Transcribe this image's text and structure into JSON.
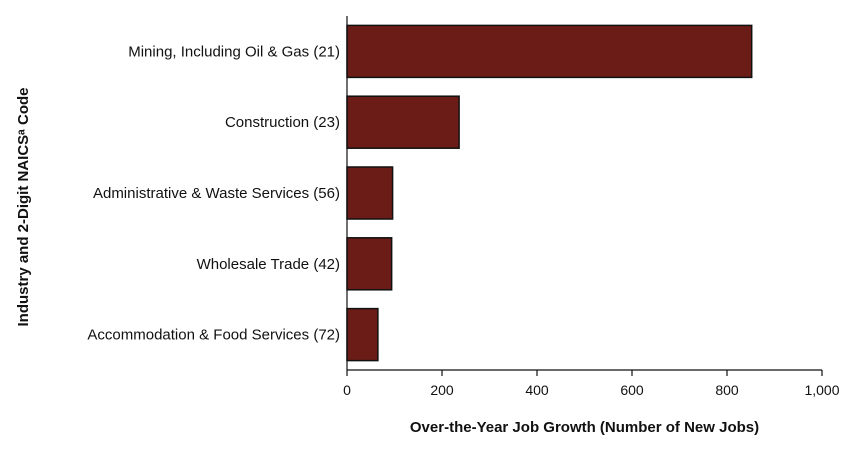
{
  "chart_data": {
    "type": "bar",
    "orientation": "horizontal",
    "title": "",
    "categories": [
      "Mining, Including Oil & Gas (21)",
      "Construction (23)",
      "Administrative & Waste Services (56)",
      "Wholesale Trade (42)",
      "Accommodation & Food Services (72)"
    ],
    "values": [
      852,
      236,
      96,
      94,
      65
    ],
    "xlabel": "Over-the-Year Job Growth (Number of New Jobs)",
    "ylabel": "Industry and 2-Digit NAICSᵃ Code",
    "xlim": [
      0,
      1000
    ],
    "xticks": [
      0,
      200,
      400,
      600,
      800,
      1000
    ],
    "xtick_labels": [
      "0",
      "200",
      "400",
      "600",
      "800",
      "1,000"
    ],
    "grid": false,
    "legend": "none",
    "bar_color": "#6b1c17",
    "bar_edge_color": "#111111"
  }
}
